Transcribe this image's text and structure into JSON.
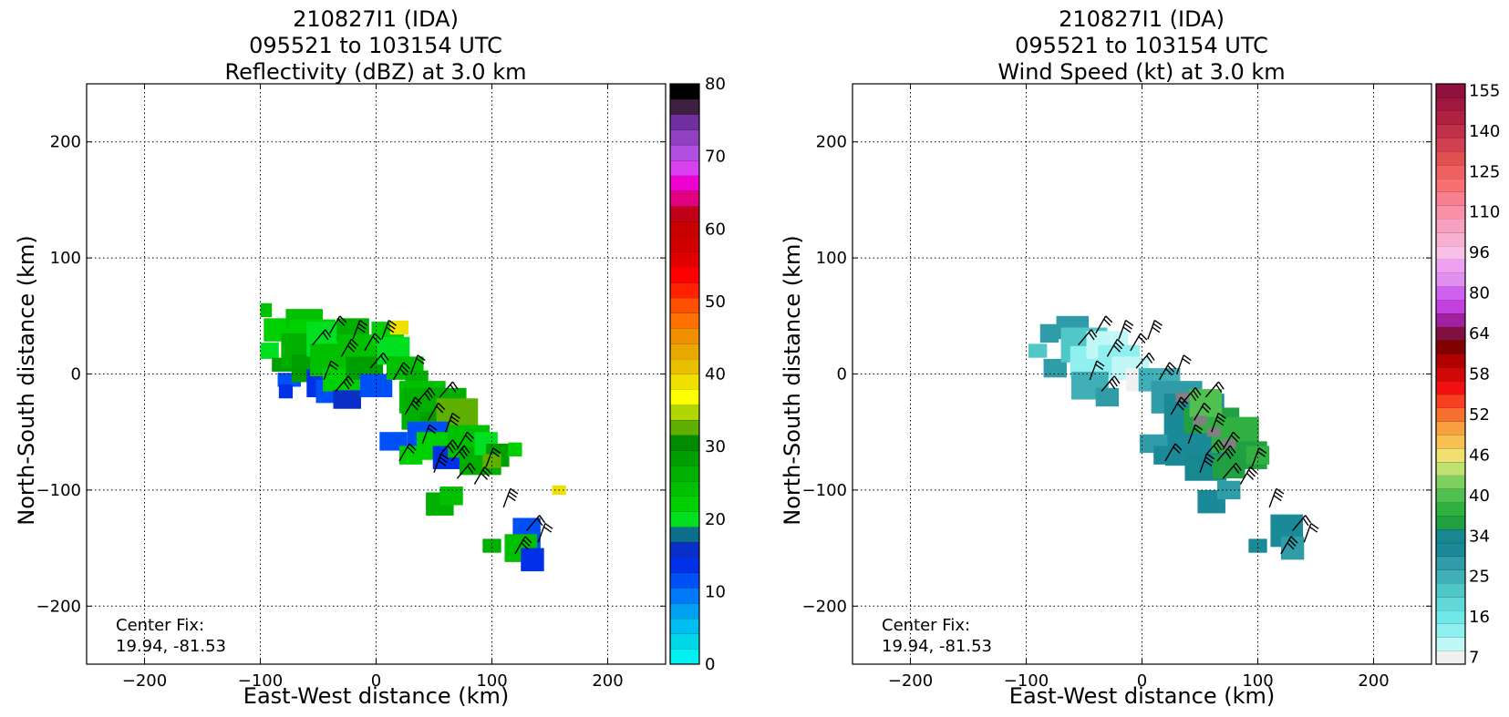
{
  "chart_data": [
    {
      "type": "heatmap",
      "title": [
        "210827I1 (IDA)",
        "095521 to 103154 UTC",
        "Reflectivity (dBZ) at 3.0 km"
      ],
      "xlabel": "East-West distance (km)",
      "ylabel": "North-South distance (km)",
      "xlim": [
        -250,
        250
      ],
      "ylim": [
        -250,
        250
      ],
      "xticks": [
        -200,
        -100,
        0,
        100,
        200
      ],
      "yticks": [
        -200,
        -100,
        0,
        100,
        200
      ],
      "xtick_labels": [
        "−200",
        "−100",
        "0",
        "100",
        "200"
      ],
      "ytick_labels": [
        "−200",
        "−100",
        "0",
        "100",
        "200"
      ],
      "grid": true,
      "annotation": [
        "Center Fix:",
        "19.94, -81.53"
      ],
      "colorbar": {
        "min": 0,
        "max": 80,
        "tick_values": [
          0,
          10,
          20,
          30,
          40,
          50,
          60,
          70,
          80
        ],
        "tick_labels": [
          "0",
          "10",
          "20",
          "30",
          "40",
          "50",
          "60",
          "70",
          "80"
        ],
        "colors": [
          "#00f0f0",
          "#00d8e8",
          "#00bff0",
          "#009ff0",
          "#0078f8",
          "#0050f8",
          "#0030e8",
          "#0a2fc8",
          "#0b6e8a",
          "#00e020",
          "#00d000",
          "#00c000",
          "#00b000",
          "#009f00",
          "#008c00",
          "#5fb000",
          "#b0d800",
          "#ffff00",
          "#f0e000",
          "#e8c000",
          "#e8a800",
          "#f09000",
          "#ff7000",
          "#ff5000",
          "#ff2000",
          "#ff0000",
          "#e00000",
          "#d00000",
          "#c80000",
          "#c00018",
          "#e00080",
          "#f000d0",
          "#d840f0",
          "#b050e0",
          "#9040c0",
          "#7030a0",
          "#402040",
          "#000000"
        ]
      },
      "field": [
        [
          -95,
          55,
          5,
          6,
          "#00c000"
        ],
        [
          -85,
          38,
          12,
          10,
          "#00d000"
        ],
        [
          -92,
          20,
          8,
          7,
          "#00e020"
        ],
        [
          -80,
          8,
          10,
          6,
          "#009f00"
        ],
        [
          -75,
          -5,
          10,
          6,
          "#0050f8"
        ],
        [
          -78,
          -15,
          6,
          6,
          "#0030e8"
        ],
        [
          -62,
          48,
          16,
          8,
          "#00c000"
        ],
        [
          -55,
          35,
          20,
          12,
          "#00d000"
        ],
        [
          -60,
          20,
          22,
          15,
          "#00b000"
        ],
        [
          -55,
          5,
          18,
          12,
          "#009f00"
        ],
        [
          -50,
          -8,
          10,
          12,
          "#0030e8"
        ],
        [
          -42,
          -15,
          10,
          10,
          "#0050f8"
        ],
        [
          -40,
          30,
          20,
          15,
          "#00e020"
        ],
        [
          -35,
          12,
          22,
          14,
          "#00c000"
        ],
        [
          -30,
          -5,
          16,
          10,
          "#00d000"
        ],
        [
          -25,
          -22,
          12,
          8,
          "#0a2fc8"
        ],
        [
          -20,
          38,
          14,
          10,
          "#00b000"
        ],
        [
          -15,
          20,
          18,
          14,
          "#00c000"
        ],
        [
          -10,
          5,
          16,
          10,
          "#009f00"
        ],
        [
          0,
          -10,
          14,
          10,
          "#0050f8"
        ],
        [
          10,
          35,
          14,
          10,
          "#00d000"
        ],
        [
          20,
          40,
          8,
          6,
          "#f0e000"
        ],
        [
          15,
          20,
          14,
          12,
          "#00e020"
        ],
        [
          25,
          5,
          16,
          10,
          "#00c000"
        ],
        [
          35,
          -5,
          10,
          8,
          "#00b000"
        ],
        [
          40,
          -20,
          20,
          14,
          "#00c000"
        ],
        [
          50,
          -30,
          28,
          18,
          "#00b000"
        ],
        [
          60,
          -45,
          22,
          12,
          "#009f00"
        ],
        [
          70,
          -35,
          18,
          14,
          "#5fb000"
        ],
        [
          45,
          -55,
          18,
          14,
          "#0050f8"
        ],
        [
          55,
          -62,
          20,
          12,
          "#00d000"
        ],
        [
          65,
          -72,
          16,
          10,
          "#0030e8"
        ],
        [
          80,
          -58,
          18,
          14,
          "#00c000"
        ],
        [
          90,
          -75,
          18,
          12,
          "#00b000"
        ],
        [
          95,
          -60,
          10,
          10,
          "#00e020"
        ],
        [
          105,
          -70,
          10,
          10,
          "#009f00"
        ],
        [
          15,
          -58,
          12,
          8,
          "#0050f8"
        ],
        [
          30,
          -70,
          10,
          8,
          "#00d000"
        ],
        [
          55,
          -112,
          12,
          10,
          "#00b000"
        ],
        [
          65,
          -105,
          10,
          8,
          "#00c000"
        ],
        [
          100,
          -75,
          8,
          6,
          "#5fb000"
        ],
        [
          120,
          -65,
          6,
          6,
          "#00d000"
        ],
        [
          130,
          -138,
          12,
          14,
          "#0050f8"
        ],
        [
          125,
          -150,
          14,
          12,
          "#00c000"
        ],
        [
          135,
          -160,
          10,
          10,
          "#0030e8"
        ],
        [
          100,
          -148,
          8,
          6,
          "#00b000"
        ],
        [
          158,
          -100,
          6,
          4,
          "#f0e000"
        ]
      ],
      "barbs": [
        [
          -40,
          35
        ],
        [
          -20,
          30
        ],
        [
          -55,
          25
        ],
        [
          -30,
          15
        ],
        [
          -45,
          -5
        ],
        [
          -35,
          -15
        ],
        [
          -10,
          20
        ],
        [
          5,
          30
        ],
        [
          -5,
          5
        ],
        [
          15,
          -5
        ],
        [
          30,
          0
        ],
        [
          35,
          -25
        ],
        [
          45,
          -40
        ],
        [
          60,
          -50
        ],
        [
          55,
          -20
        ],
        [
          25,
          -35
        ],
        [
          40,
          -60
        ],
        [
          55,
          -70
        ],
        [
          70,
          -65
        ],
        [
          50,
          -85
        ],
        [
          70,
          -90
        ],
        [
          85,
          -95
        ],
        [
          95,
          -80
        ],
        [
          65,
          -75
        ],
        [
          20,
          -75
        ],
        [
          110,
          -115
        ],
        [
          130,
          -135
        ],
        [
          120,
          -155
        ],
        [
          140,
          -145
        ]
      ]
    },
    {
      "type": "heatmap",
      "title": [
        "210827I1 (IDA)",
        "095521 to 103154 UTC",
        "Wind Speed (kt) at 3.0 km"
      ],
      "xlabel": "East-West distance (km)",
      "ylabel": "North-South distance (km)",
      "xlim": [
        -250,
        250
      ],
      "ylim": [
        -250,
        250
      ],
      "xticks": [
        -200,
        -100,
        0,
        100,
        200
      ],
      "yticks": [
        -200,
        -100,
        0,
        100,
        200
      ],
      "xtick_labels": [
        "−200",
        "−100",
        "0",
        "100",
        "200"
      ],
      "ytick_labels": [
        "−200",
        "−100",
        "0",
        "100",
        "200"
      ],
      "grid": true,
      "annotation": [
        "Center Fix:",
        "19.94, -81.53"
      ],
      "colorbar": {
        "tick_labels": [
          "7",
          "16",
          "25",
          "34",
          "40",
          "46",
          "52",
          "58",
          "64",
          "80",
          "96",
          "110",
          "125",
          "140",
          "155"
        ],
        "tick_bins": [
          0,
          3,
          6,
          9,
          12,
          15,
          18,
          21,
          24,
          27,
          30,
          33,
          36,
          39,
          42
        ],
        "colors": [
          "#f0f0f0",
          "#c0f8f8",
          "#90f0f0",
          "#70e8e8",
          "#60d8d8",
          "#50c8c8",
          "#40b0b8",
          "#309ca8",
          "#1a8a98",
          "#188890",
          "#20a040",
          "#30b040",
          "#50c050",
          "#80d060",
          "#c0e070",
          "#f0e070",
          "#f8c050",
          "#f8a040",
          "#f87030",
          "#f84020",
          "#f01010",
          "#d00808",
          "#b00000",
          "#800000",
          "#801040",
          "#a020a0",
          "#c040e0",
          "#d060f0",
          "#e090f0",
          "#f0a0f0",
          "#f8c0e8",
          "#f8b0d0",
          "#f8a0c0",
          "#f890a8",
          "#f88090",
          "#f87070",
          "#f06060",
          "#e05050",
          "#d04050",
          "#c03048",
          "#b02040",
          "#a01840",
          "#901040"
        ]
      },
      "field": [
        [
          -80,
          35,
          8,
          8,
          "#309ca8"
        ],
        [
          -90,
          20,
          8,
          6,
          "#50c8c8"
        ],
        [
          -75,
          5,
          10,
          8,
          "#309ca8"
        ],
        [
          -60,
          40,
          14,
          10,
          "#309ca8"
        ],
        [
          -50,
          25,
          20,
          15,
          "#50c8c8"
        ],
        [
          -40,
          10,
          22,
          14,
          "#90f0f0"
        ],
        [
          -30,
          25,
          18,
          12,
          "#c0f8f8"
        ],
        [
          -45,
          -10,
          16,
          12,
          "#40b0b8"
        ],
        [
          -30,
          -20,
          10,
          8,
          "#309ca8"
        ],
        [
          -20,
          15,
          18,
          10,
          "#90f0f0"
        ],
        [
          -10,
          5,
          16,
          10,
          "#c0f8f8"
        ],
        [
          0,
          -5,
          14,
          10,
          "#f0f0f0"
        ],
        [
          15,
          -5,
          18,
          10,
          "#40b0b8"
        ],
        [
          30,
          -20,
          22,
          14,
          "#309ca8"
        ],
        [
          45,
          -35,
          26,
          18,
          "#1a8a98"
        ],
        [
          60,
          -45,
          24,
          16,
          "#20a040"
        ],
        [
          75,
          -55,
          26,
          18,
          "#30b040"
        ],
        [
          55,
          -25,
          14,
          12,
          "#50c050"
        ],
        [
          90,
          -70,
          18,
          12,
          "#20a040"
        ],
        [
          40,
          -65,
          20,
          14,
          "#1a8a98"
        ],
        [
          55,
          -80,
          18,
          12,
          "#188890"
        ],
        [
          75,
          -80,
          14,
          10,
          "#20a040"
        ],
        [
          100,
          -70,
          10,
          8,
          "#30b040"
        ],
        [
          10,
          -60,
          12,
          8,
          "#309ca8"
        ],
        [
          20,
          -70,
          10,
          8,
          "#1a8a98"
        ],
        [
          60,
          -110,
          12,
          10,
          "#1a8a98"
        ],
        [
          75,
          -100,
          10,
          8,
          "#309ca8"
        ],
        [
          125,
          -135,
          14,
          14,
          "#1a8a98"
        ],
        [
          130,
          -150,
          10,
          10,
          "#309ca8"
        ],
        [
          100,
          -148,
          8,
          6,
          "#1a8a98"
        ],
        [
          35,
          -20,
          6,
          4,
          "#808080"
        ],
        [
          50,
          -40,
          6,
          4,
          "#808080"
        ],
        [
          62,
          -50,
          6,
          4,
          "#808080"
        ],
        [
          75,
          -60,
          6,
          4,
          "#808080"
        ],
        [
          55,
          -30,
          5,
          4,
          "#50c050"
        ]
      ],
      "barbs": [
        [
          -40,
          35
        ],
        [
          -20,
          30
        ],
        [
          -55,
          25
        ],
        [
          -30,
          15
        ],
        [
          -45,
          -5
        ],
        [
          -35,
          -15
        ],
        [
          -10,
          20
        ],
        [
          5,
          30
        ],
        [
          -5,
          5
        ],
        [
          15,
          -5
        ],
        [
          30,
          0
        ],
        [
          35,
          -25
        ],
        [
          45,
          -40
        ],
        [
          60,
          -50
        ],
        [
          55,
          -20
        ],
        [
          25,
          -35
        ],
        [
          40,
          -60
        ],
        [
          55,
          -70
        ],
        [
          70,
          -65
        ],
        [
          50,
          -85
        ],
        [
          70,
          -90
        ],
        [
          85,
          -95
        ],
        [
          95,
          -80
        ],
        [
          65,
          -75
        ],
        [
          20,
          -75
        ],
        [
          110,
          -115
        ],
        [
          130,
          -135
        ],
        [
          120,
          -155
        ],
        [
          140,
          -145
        ]
      ]
    }
  ]
}
